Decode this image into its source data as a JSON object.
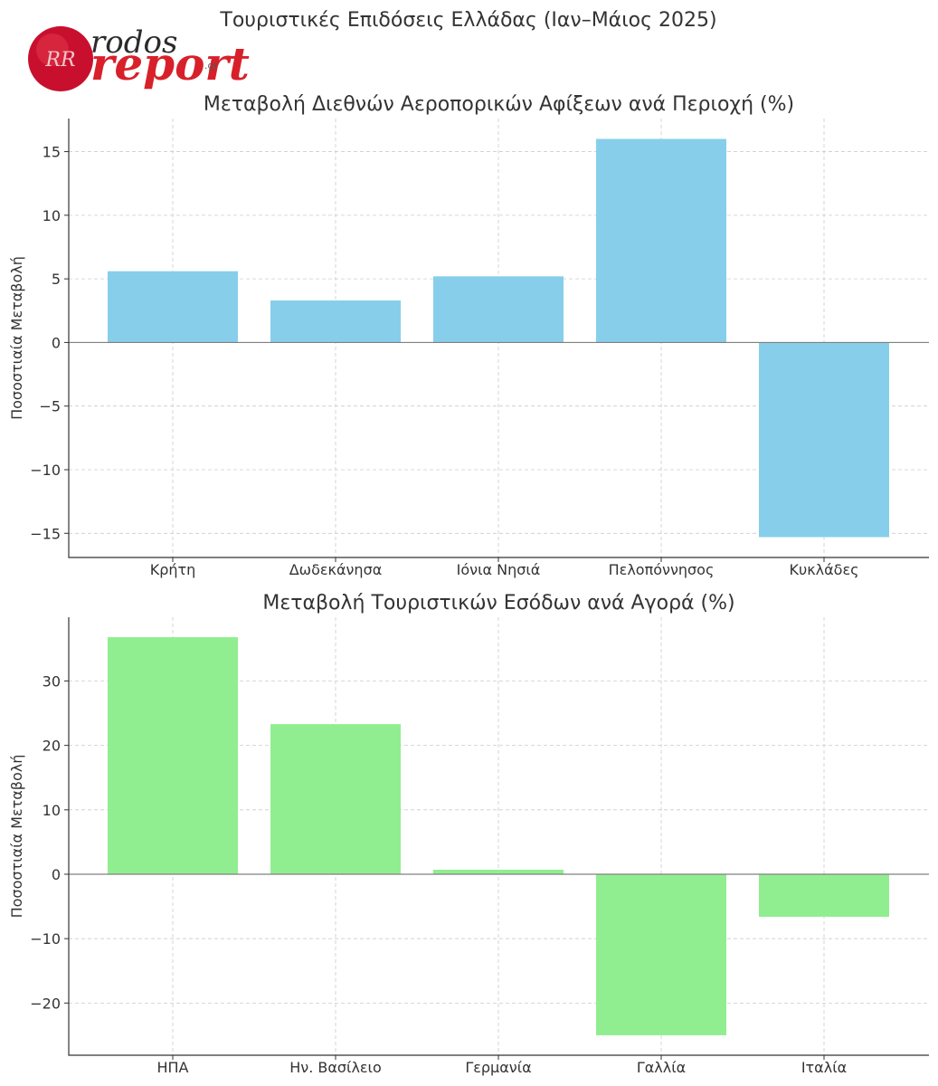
{
  "suptitle": "Τουριστικές Επιδόσεις Ελλάδας (Ιαν–Μάιος 2025)",
  "logo": {
    "word_top": "rodos",
    "word_main": "report",
    "tld": ".gr",
    "monogram": "RR",
    "colors": {
      "seal": "#c8102e",
      "text_main": "#d8202a"
    }
  },
  "chart_data": [
    {
      "type": "bar",
      "title": "Μεταβολή Διεθνών Αεροπορικών Αφίξεων ανά Περιοχή (%)",
      "ylabel": "Ποσοστιαία Μεταβολή",
      "xlabel": "",
      "categories": [
        "Κρήτη",
        "Δωδεκάνησα",
        "Ιόνια Νησιά",
        "Πελοπόννησος",
        "Κυκλάδες"
      ],
      "values": [
        5.6,
        3.3,
        5.2,
        16.0,
        -15.3
      ],
      "ylim": [
        -16.9,
        17.6
      ],
      "yticks": [
        -15,
        -10,
        -5,
        0,
        5,
        10,
        15
      ],
      "ytick_labels": [
        "−15",
        "−10",
        "−5",
        "0",
        "5",
        "10",
        "15"
      ],
      "color": "#87ceeb",
      "grid": true,
      "zero_line": true
    },
    {
      "type": "bar",
      "title": "Μεταβολή Τουριστικών Εσόδων ανά Αγορά (%)",
      "ylabel": "Ποσοστιαία Μεταβολή",
      "xlabel": "",
      "categories": [
        "ΗΠΑ",
        "Ην. Βασίλειο",
        "Γερμανία",
        "Γαλλία",
        "Ιταλία"
      ],
      "values": [
        36.8,
        23.3,
        0.7,
        -25.0,
        -6.6
      ],
      "ylim": [
        -28.1,
        39.9
      ],
      "yticks": [
        -20,
        -10,
        0,
        10,
        20,
        30
      ],
      "ytick_labels": [
        "−20",
        "−10",
        "0",
        "10",
        "20",
        "30"
      ],
      "color": "#90ee90",
      "grid": true,
      "zero_line": true
    }
  ]
}
